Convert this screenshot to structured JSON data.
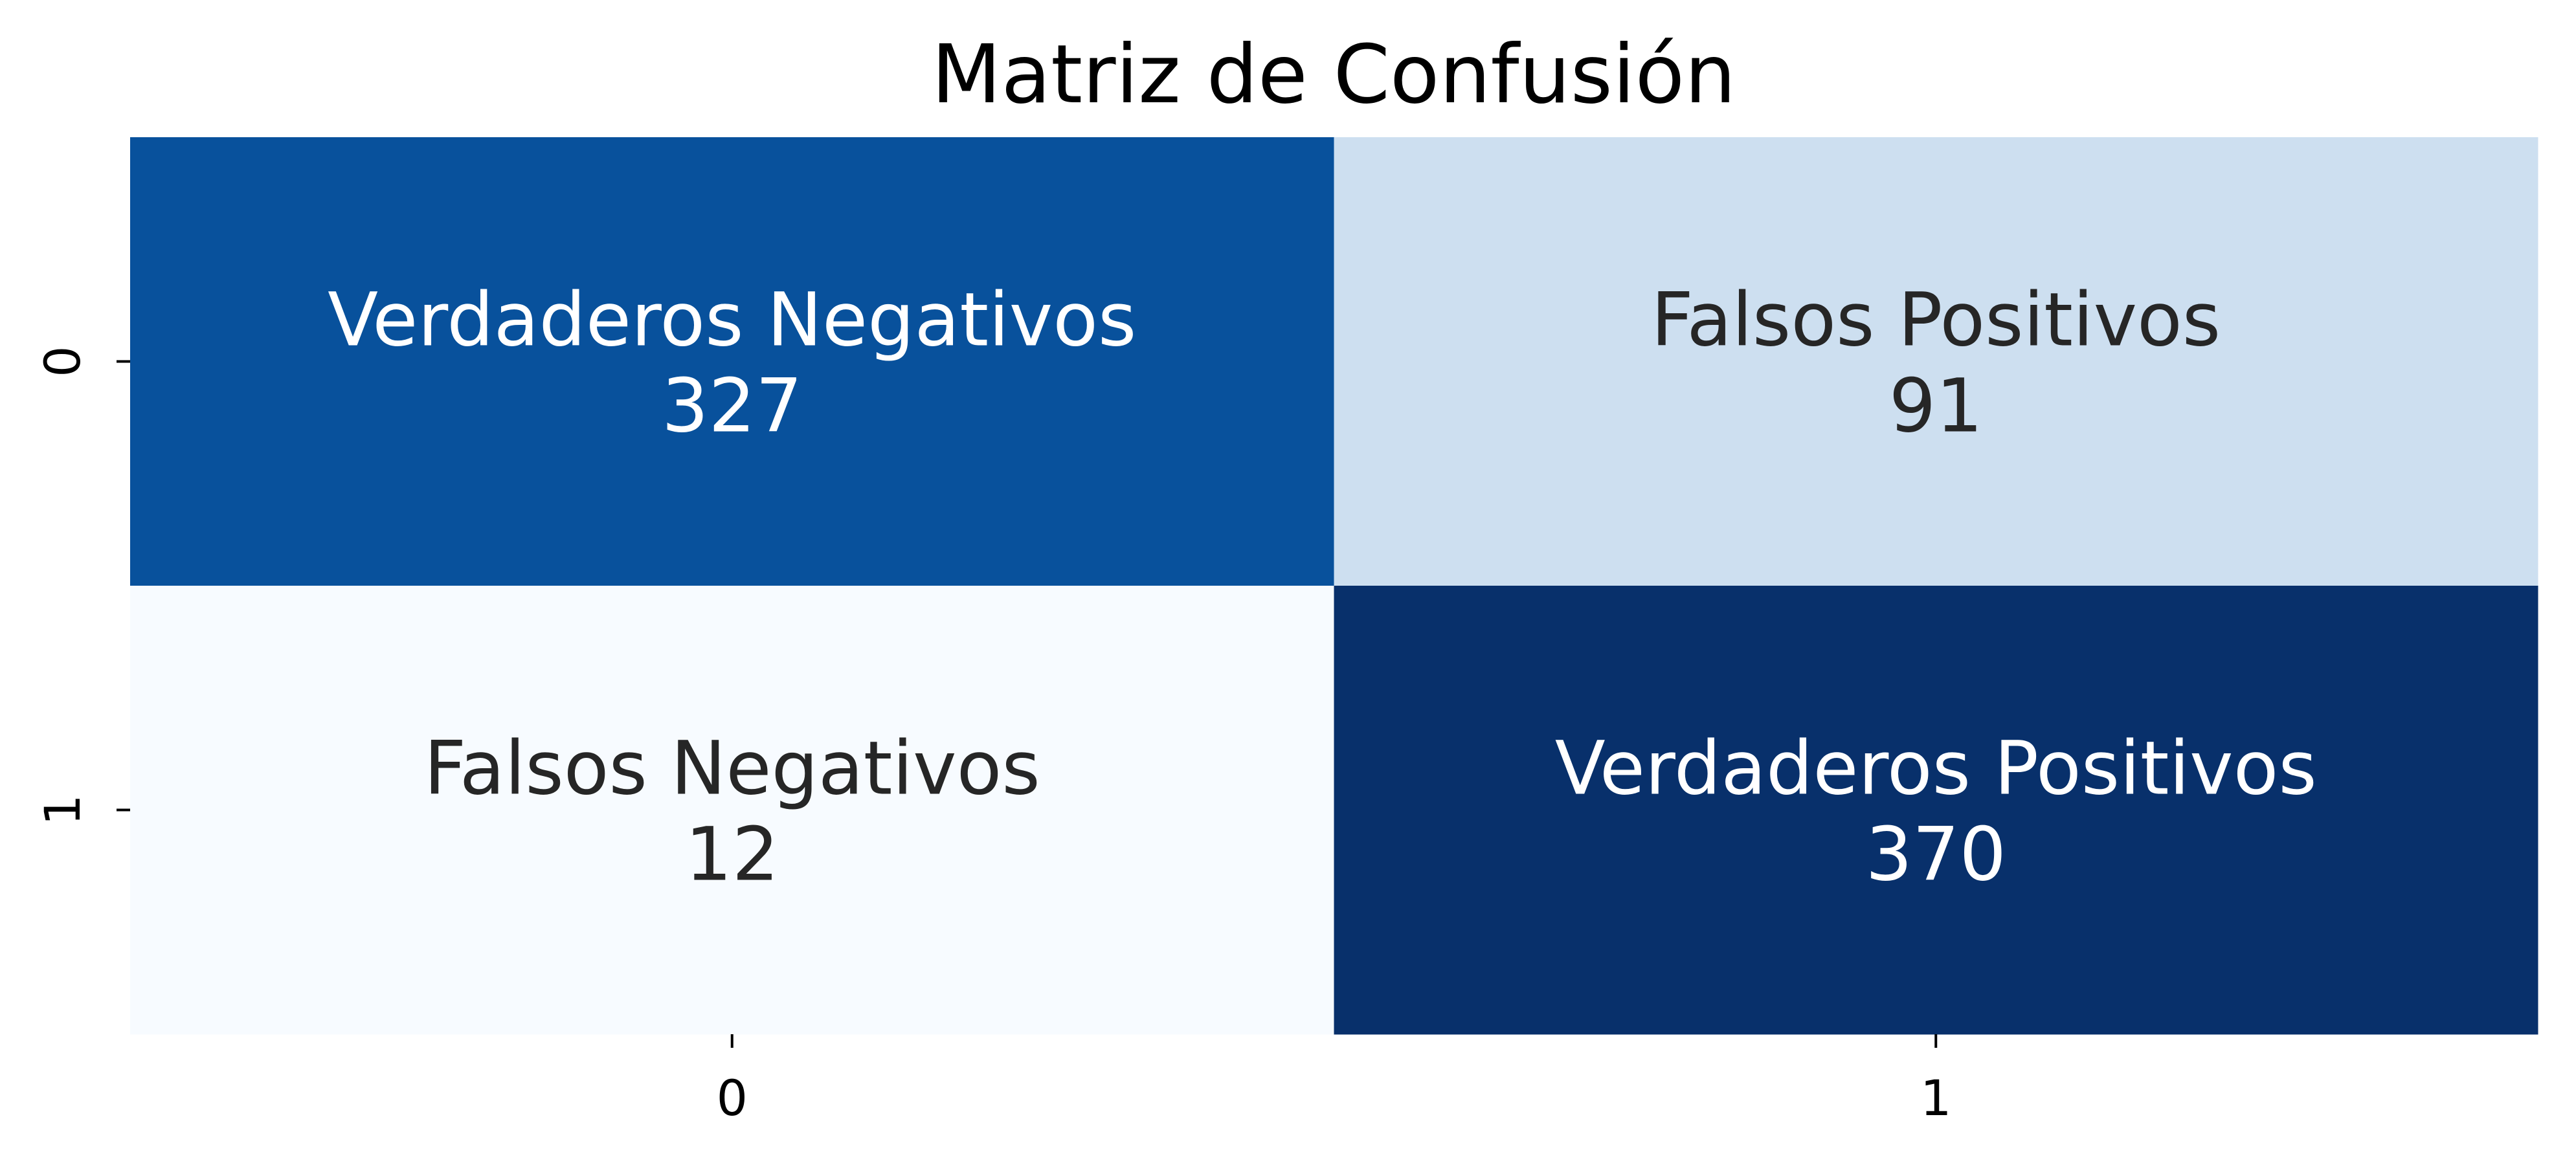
{
  "chart_data": {
    "type": "heatmap",
    "title": "Matriz de Confusión",
    "xlabel": "",
    "ylabel": "",
    "x_tick_labels": [
      "0",
      "1"
    ],
    "y_tick_labels": [
      "0",
      "1"
    ],
    "colormap": "Blues",
    "colorbar": false,
    "cells": [
      {
        "row": 0,
        "col": 0,
        "label": "Verdaderos Negativos",
        "value": 327,
        "fill": "#08519c",
        "text_color": "#ffffff"
      },
      {
        "row": 0,
        "col": 1,
        "label": "Falsos Positivos",
        "value": 91,
        "fill": "#cddff0",
        "text_color": "#262626"
      },
      {
        "row": 1,
        "col": 0,
        "label": "Falsos Negativos",
        "value": 12,
        "fill": "#f7fbff",
        "text_color": "#262626"
      },
      {
        "row": 1,
        "col": 1,
        "label": "Verdaderos Positivos",
        "value": 370,
        "fill": "#08306b",
        "text_color": "#ffffff"
      }
    ]
  }
}
